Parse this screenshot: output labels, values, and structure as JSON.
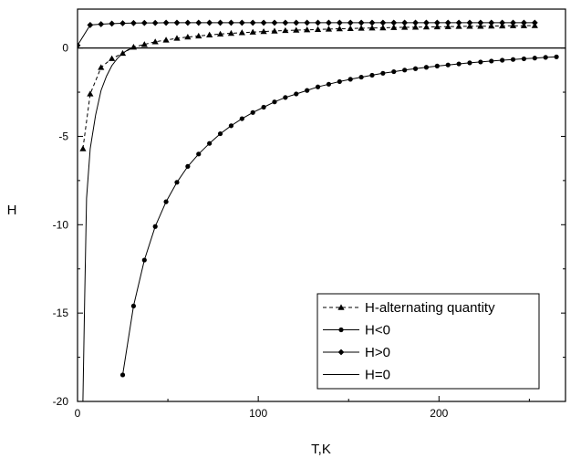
{
  "chart_data": {
    "type": "line",
    "xlabel": "T,K",
    "ylabel": "H",
    "xlim": [
      0,
      270
    ],
    "ylim": [
      -20,
      2.2
    ],
    "x_ticks": [
      0,
      100,
      200
    ],
    "y_ticks": [
      0,
      -5,
      -10,
      -15,
      -20
    ],
    "zero_line": 0,
    "legend_position": "bottom-right",
    "series": [
      {
        "name": "H-alternating quantity",
        "marker": "triangle",
        "line": "dashed",
        "x": [
          3,
          7,
          13,
          19,
          25,
          31,
          37,
          43,
          49,
          55,
          61,
          67,
          73,
          79,
          85,
          91,
          97,
          103,
          109,
          115,
          121,
          127,
          133,
          139,
          145,
          151,
          157,
          163,
          169,
          175,
          181,
          187,
          193,
          199,
          205,
          211,
          217,
          223,
          229,
          235,
          241,
          247,
          253
        ],
        "y": [
          -5.7,
          -2.6,
          -1.1,
          -0.6,
          -0.3,
          0.05,
          0.2,
          0.35,
          0.45,
          0.55,
          0.62,
          0.68,
          0.74,
          0.79,
          0.83,
          0.87,
          0.9,
          0.93,
          0.96,
          0.99,
          1.01,
          1.03,
          1.05,
          1.07,
          1.09,
          1.1,
          1.12,
          1.13,
          1.14,
          1.16,
          1.17,
          1.18,
          1.19,
          1.2,
          1.21,
          1.22,
          1.23,
          1.23,
          1.24,
          1.25,
          1.26,
          1.26,
          1.27
        ]
      },
      {
        "name": "H<0",
        "marker": "circle",
        "line": "solid",
        "x": [
          25,
          31,
          37,
          43,
          49,
          55,
          61,
          67,
          73,
          79,
          85,
          91,
          97,
          103,
          109,
          115,
          121,
          127,
          133,
          139,
          145,
          151,
          157,
          163,
          169,
          175,
          181,
          187,
          193,
          199,
          205,
          211,
          217,
          223,
          229,
          235,
          241,
          247,
          253,
          259,
          265
        ],
        "y": [
          -18.5,
          -14.6,
          -12.0,
          -10.1,
          -8.7,
          -7.6,
          -6.7,
          -6.0,
          -5.4,
          -4.85,
          -4.4,
          -4.0,
          -3.65,
          -3.35,
          -3.05,
          -2.8,
          -2.6,
          -2.4,
          -2.2,
          -2.05,
          -1.9,
          -1.77,
          -1.65,
          -1.54,
          -1.43,
          -1.34,
          -1.25,
          -1.17,
          -1.09,
          -1.02,
          -0.96,
          -0.9,
          -0.84,
          -0.79,
          -0.74,
          -0.69,
          -0.65,
          -0.61,
          -0.57,
          -0.53,
          -0.5
        ]
      },
      {
        "name": "H>0",
        "marker": "diamond",
        "line": "solid",
        "x": [
          0,
          7,
          13,
          19,
          25,
          31,
          37,
          43,
          49,
          55,
          61,
          67,
          73,
          79,
          85,
          91,
          97,
          103,
          109,
          115,
          121,
          127,
          133,
          139,
          145,
          151,
          157,
          163,
          169,
          175,
          181,
          187,
          193,
          199,
          205,
          211,
          217,
          223,
          229,
          235,
          241,
          247,
          253
        ],
        "y": [
          0.15,
          1.3,
          1.35,
          1.38,
          1.4,
          1.41,
          1.42,
          1.42,
          1.43,
          1.43,
          1.43,
          1.43,
          1.43,
          1.43,
          1.43,
          1.43,
          1.43,
          1.43,
          1.43,
          1.43,
          1.43,
          1.43,
          1.43,
          1.43,
          1.43,
          1.43,
          1.43,
          1.43,
          1.43,
          1.43,
          1.43,
          1.43,
          1.43,
          1.43,
          1.43,
          1.43,
          1.43,
          1.43,
          1.43,
          1.43,
          1.43,
          1.43,
          1.43
        ]
      },
      {
        "name": "H=0",
        "marker": "none",
        "line": "solid",
        "x": [
          3,
          4,
          5,
          7,
          10,
          13,
          16,
          19,
          22,
          25,
          28,
          31
        ],
        "y": [
          -20,
          -14,
          -8.5,
          -5.7,
          -3.8,
          -2.4,
          -1.6,
          -1.0,
          -0.6,
          -0.3,
          -0.1,
          0.0
        ]
      }
    ]
  }
}
